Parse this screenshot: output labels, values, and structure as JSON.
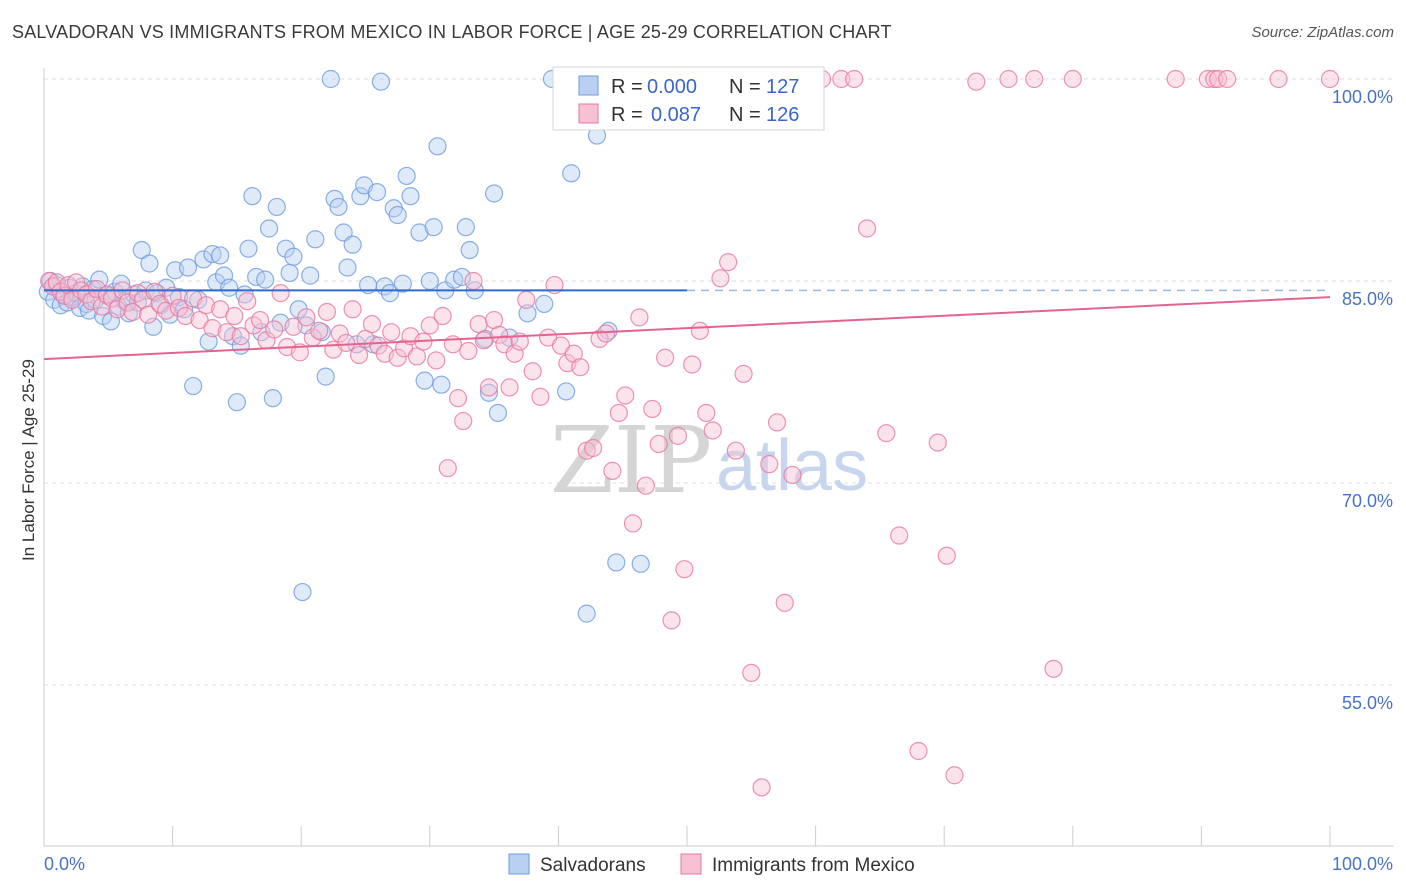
{
  "title": "SALVADORAN VS IMMIGRANTS FROM MEXICO IN LABOR FORCE | AGE 25-29 CORRELATION CHART",
  "source": "Source: ZipAtlas.com",
  "watermark": {
    "zip": "ZIP",
    "atlas": "atlas"
  },
  "chart_data": {
    "type": "scatter",
    "ylabel": "In Labor Force | Age 25-29",
    "xlim": [
      0,
      100
    ],
    "ylim": [
      40,
      101
    ],
    "x_tick_labels": [
      "0.0%",
      "100.0%"
    ],
    "y_ticks": [
      {
        "value": 100,
        "label": "100.0%"
      },
      {
        "value": 85,
        "label": "85.0%"
      },
      {
        "value": 70,
        "label": "70.0%"
      },
      {
        "value": 55,
        "label": "55.0%"
      }
    ],
    "grid": "horizontal dashed",
    "legend": {
      "placement": "top-center",
      "entries": [
        {
          "r_label": "R =",
          "r_value": "0.000",
          "n_label": "N =",
          "n_value": "127"
        },
        {
          "r_label": "R =",
          "r_value": "0.087",
          "n_label": "N =",
          "n_value": "126"
        }
      ]
    },
    "series": [
      {
        "name": "Salvadorans",
        "color": "#6e9be0",
        "fill": "#b9d0f2",
        "trend": {
          "x": [
            0,
            50
          ],
          "y": [
            84.3,
            84.3
          ],
          "dashed_to": 100
        },
        "points": [
          [
            0.3,
            84.2
          ],
          [
            0.5,
            85.0
          ],
          [
            0.8,
            83.6
          ],
          [
            1.0,
            84.7
          ],
          [
            1.3,
            83.2
          ],
          [
            1.5,
            84.0
          ],
          [
            1.8,
            83.4
          ],
          [
            2.0,
            84.5
          ],
          [
            2.2,
            83.8
          ],
          [
            2.5,
            84.1
          ],
          [
            2.8,
            83.0
          ],
          [
            3.0,
            84.6
          ],
          [
            3.3,
            83.3
          ],
          [
            3.5,
            82.8
          ],
          [
            3.8,
            84.4
          ],
          [
            4.0,
            83.6
          ],
          [
            4.3,
            85.1
          ],
          [
            4.6,
            82.4
          ],
          [
            4.9,
            83.9
          ],
          [
            5.2,
            82.0
          ],
          [
            5.5,
            84.2
          ],
          [
            5.8,
            83.1
          ],
          [
            6.0,
            84.8
          ],
          [
            6.3,
            83.5
          ],
          [
            6.6,
            82.6
          ],
          [
            7.0,
            84.0
          ],
          [
            7.3,
            83.4
          ],
          [
            7.6,
            87.3
          ],
          [
            7.9,
            84.3
          ],
          [
            8.2,
            86.3
          ],
          [
            8.5,
            81.6
          ],
          [
            8.8,
            84.1
          ],
          [
            9.1,
            83.2
          ],
          [
            9.5,
            84.5
          ],
          [
            9.8,
            82.5
          ],
          [
            10.2,
            85.8
          ],
          [
            10.5,
            83.8
          ],
          [
            10.9,
            82.9
          ],
          [
            11.2,
            86.0
          ],
          [
            11.6,
            77.2
          ],
          [
            12.0,
            83.6
          ],
          [
            12.4,
            86.6
          ],
          [
            12.8,
            80.5
          ],
          [
            13.1,
            87.0
          ],
          [
            13.4,
            84.9
          ],
          [
            13.7,
            86.9
          ],
          [
            14.0,
            85.4
          ],
          [
            14.4,
            84.5
          ],
          [
            14.7,
            80.9
          ],
          [
            15.0,
            76.0
          ],
          [
            15.3,
            80.2
          ],
          [
            15.6,
            84.0
          ],
          [
            15.9,
            87.4
          ],
          [
            16.2,
            91.3
          ],
          [
            16.5,
            85.3
          ],
          [
            16.9,
            81.2
          ],
          [
            17.2,
            85.1
          ],
          [
            17.5,
            88.9
          ],
          [
            17.8,
            76.3
          ],
          [
            18.1,
            90.5
          ],
          [
            18.4,
            81.9
          ],
          [
            18.8,
            87.4
          ],
          [
            19.1,
            85.6
          ],
          [
            19.4,
            86.8
          ],
          [
            19.8,
            82.9
          ],
          [
            20.1,
            61.9
          ],
          [
            20.4,
            81.7
          ],
          [
            20.7,
            85.4
          ],
          [
            21.1,
            88.1
          ],
          [
            21.6,
            81.2
          ],
          [
            21.9,
            77.9
          ],
          [
            22.3,
            100.0
          ],
          [
            22.6,
            91.1
          ],
          [
            22.9,
            90.5
          ],
          [
            23.3,
            88.6
          ],
          [
            23.6,
            86.0
          ],
          [
            24.0,
            87.7
          ],
          [
            24.3,
            80.3
          ],
          [
            24.6,
            91.3
          ],
          [
            24.9,
            92.1
          ],
          [
            25.2,
            84.7
          ],
          [
            25.6,
            80.3
          ],
          [
            25.9,
            91.6
          ],
          [
            26.2,
            99.8
          ],
          [
            26.5,
            84.6
          ],
          [
            26.9,
            84.1
          ],
          [
            27.2,
            90.4
          ],
          [
            27.5,
            89.9
          ],
          [
            27.9,
            84.8
          ],
          [
            28.2,
            92.8
          ],
          [
            28.5,
            91.3
          ],
          [
            29.2,
            88.6
          ],
          [
            29.6,
            77.6
          ],
          [
            30.0,
            85.0
          ],
          [
            30.3,
            89.0
          ],
          [
            30.6,
            95.0
          ],
          [
            30.9,
            77.3
          ],
          [
            31.2,
            84.3
          ],
          [
            31.9,
            85.1
          ],
          [
            32.5,
            85.3
          ],
          [
            32.8,
            89.0
          ],
          [
            33.1,
            87.3
          ],
          [
            33.5,
            84.3
          ],
          [
            34.3,
            80.7
          ],
          [
            34.6,
            76.7
          ],
          [
            35.0,
            91.5
          ],
          [
            35.3,
            75.2
          ],
          [
            36.2,
            80.8
          ],
          [
            37.6,
            82.6
          ],
          [
            38.9,
            83.3
          ],
          [
            39.5,
            100.0
          ],
          [
            40.6,
            76.8
          ],
          [
            41.0,
            93.0
          ],
          [
            42.2,
            60.3
          ],
          [
            43.0,
            95.8
          ],
          [
            43.9,
            81.3
          ],
          [
            44.5,
            64.1
          ],
          [
            46.4,
            64.0
          ],
          [
            52.0,
            100.0
          ],
          [
            57.7,
            100.0
          ]
        ]
      },
      {
        "name": "Immigrants from Mexico",
        "color": "#e9789e",
        "fill": "#f6c2d3",
        "trend": {
          "x": [
            0,
            100
          ],
          "y": [
            79.2,
            83.8
          ]
        },
        "points": [
          [
            0.4,
            85.0
          ],
          [
            0.7,
            84.6
          ],
          [
            1.0,
            84.9
          ],
          [
            1.3,
            84.2
          ],
          [
            1.6,
            83.9
          ],
          [
            1.9,
            84.7
          ],
          [
            2.2,
            83.6
          ],
          [
            2.5,
            84.9
          ],
          [
            2.9,
            84.3
          ],
          [
            3.3,
            84.0
          ],
          [
            3.7,
            83.5
          ],
          [
            4.1,
            84.4
          ],
          [
            4.5,
            83.1
          ],
          [
            4.9,
            84.0
          ],
          [
            5.3,
            83.7
          ],
          [
            5.7,
            82.9
          ],
          [
            6.1,
            84.3
          ],
          [
            6.5,
            83.4
          ],
          [
            6.9,
            82.7
          ],
          [
            7.3,
            84.1
          ],
          [
            7.7,
            83.6
          ],
          [
            8.1,
            82.5
          ],
          [
            8.6,
            84.2
          ],
          [
            9.0,
            83.3
          ],
          [
            9.5,
            82.8
          ],
          [
            10.0,
            83.9
          ],
          [
            10.5,
            83.0
          ],
          [
            11.0,
            82.4
          ],
          [
            11.6,
            83.7
          ],
          [
            12.1,
            82.1
          ],
          [
            12.6,
            83.2
          ],
          [
            13.1,
            81.5
          ],
          [
            13.7,
            82.9
          ],
          [
            14.2,
            81.2
          ],
          [
            14.8,
            82.4
          ],
          [
            15.3,
            80.9
          ],
          [
            15.8,
            83.5
          ],
          [
            16.3,
            81.7
          ],
          [
            16.8,
            82.1
          ],
          [
            17.3,
            80.6
          ],
          [
            17.9,
            81.4
          ],
          [
            18.4,
            84.1
          ],
          [
            18.9,
            80.1
          ],
          [
            19.4,
            81.6
          ],
          [
            19.9,
            79.7
          ],
          [
            20.4,
            82.3
          ],
          [
            20.9,
            80.8
          ],
          [
            21.4,
            81.3
          ],
          [
            22.0,
            82.7
          ],
          [
            22.5,
            79.9
          ],
          [
            23.0,
            81.1
          ],
          [
            23.5,
            80.4
          ],
          [
            24.0,
            82.9
          ],
          [
            24.5,
            79.5
          ],
          [
            25.0,
            80.7
          ],
          [
            25.5,
            81.8
          ],
          [
            26.0,
            80.2
          ],
          [
            26.5,
            79.6
          ],
          [
            27.0,
            81.2
          ],
          [
            27.5,
            79.3
          ],
          [
            28.0,
            80.0
          ],
          [
            28.5,
            80.9
          ],
          [
            29.0,
            79.4
          ],
          [
            29.5,
            80.5
          ],
          [
            30.0,
            81.7
          ],
          [
            30.5,
            79.1
          ],
          [
            31.0,
            82.4
          ],
          [
            31.4,
            71.1
          ],
          [
            31.8,
            80.3
          ],
          [
            32.2,
            76.3
          ],
          [
            32.6,
            74.6
          ],
          [
            33.0,
            79.8
          ],
          [
            33.4,
            85.0
          ],
          [
            33.8,
            81.8
          ],
          [
            34.2,
            80.6
          ],
          [
            34.6,
            77.1
          ],
          [
            35.0,
            82.1
          ],
          [
            35.4,
            81.0
          ],
          [
            35.8,
            80.3
          ],
          [
            36.2,
            77.1
          ],
          [
            36.6,
            79.6
          ],
          [
            37.0,
            80.5
          ],
          [
            37.5,
            83.6
          ],
          [
            38.0,
            78.3
          ],
          [
            38.6,
            76.4
          ],
          [
            39.2,
            80.8
          ],
          [
            39.7,
            84.7
          ],
          [
            40.2,
            80.2
          ],
          [
            40.7,
            78.9
          ],
          [
            41.2,
            79.6
          ],
          [
            41.7,
            78.6
          ],
          [
            42.2,
            72.4
          ],
          [
            42.7,
            72.6
          ],
          [
            43.2,
            80.7
          ],
          [
            43.7,
            81.1
          ],
          [
            44.2,
            70.9
          ],
          [
            44.7,
            75.2
          ],
          [
            45.2,
            76.5
          ],
          [
            45.8,
            67.0
          ],
          [
            46.3,
            82.3
          ],
          [
            46.8,
            69.8
          ],
          [
            47.3,
            75.5
          ],
          [
            47.8,
            72.9
          ],
          [
            48.3,
            79.3
          ],
          [
            48.8,
            59.8
          ],
          [
            49.3,
            73.5
          ],
          [
            49.8,
            63.6
          ],
          [
            50.4,
            78.8
          ],
          [
            51.0,
            81.3
          ],
          [
            51.5,
            75.2
          ],
          [
            52.0,
            73.9
          ],
          [
            52.6,
            85.2
          ],
          [
            53.2,
            86.4
          ],
          [
            53.8,
            72.4
          ],
          [
            54.4,
            78.1
          ],
          [
            55.0,
            55.9
          ],
          [
            55.8,
            47.4
          ],
          [
            56.4,
            71.4
          ],
          [
            57.0,
            74.5
          ],
          [
            57.6,
            61.1
          ],
          [
            58.2,
            70.6
          ],
          [
            59.5,
            100.0
          ],
          [
            60.5,
            100.0
          ],
          [
            62.0,
            100.0
          ],
          [
            63.0,
            100.0
          ],
          [
            64.0,
            88.9
          ],
          [
            65.5,
            73.7
          ],
          [
            66.5,
            66.1
          ],
          [
            68.0,
            50.1
          ],
          [
            69.5,
            73.0
          ],
          [
            70.2,
            64.6
          ],
          [
            70.8,
            48.3
          ],
          [
            72.5,
            99.8
          ],
          [
            75.0,
            100.0
          ],
          [
            77.0,
            100.0
          ],
          [
            78.5,
            56.2
          ],
          [
            80.0,
            100.0
          ],
          [
            88.0,
            100.0
          ],
          [
            90.5,
            100.0
          ],
          [
            91.0,
            100.0
          ],
          [
            91.3,
            100.0
          ],
          [
            92.0,
            100.0
          ],
          [
            96.0,
            100.0
          ],
          [
            100.0,
            100.0
          ]
        ]
      }
    ]
  },
  "bottom_legend": [
    {
      "label": "Salvadorans"
    },
    {
      "label": "Immigrants from Mexico"
    }
  ]
}
